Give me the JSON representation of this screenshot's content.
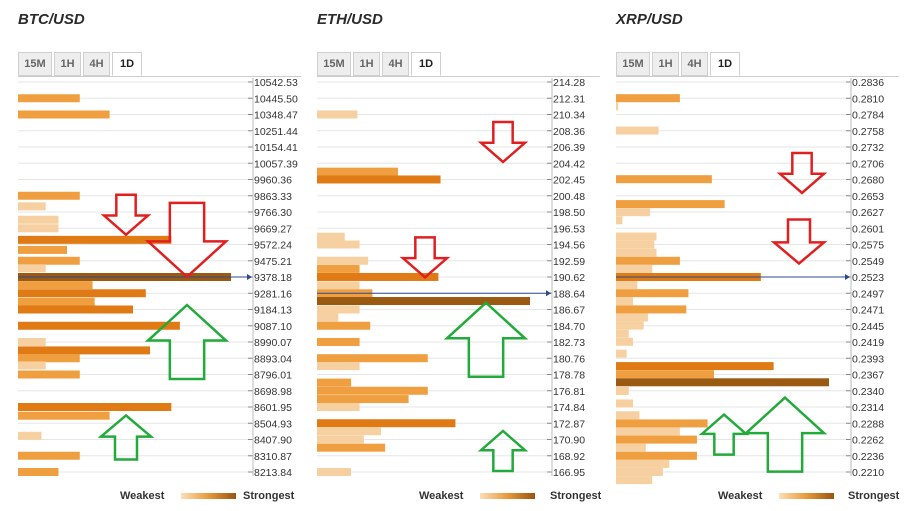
{
  "timeframes": [
    "15M",
    "1H",
    "4H",
    "1D"
  ],
  "active_timeframe": "1D",
  "legend": {
    "weakest": "Weakest",
    "strongest": "Strongest"
  },
  "colors": {
    "weak": "#f6d0a0",
    "medium": "#ef9f3f",
    "strong": "#e07a14",
    "strongest": "#9a5a12",
    "current_price_line": "#2b4a8f",
    "arrow_down": "#e02020",
    "arrow_up": "#22aa3a"
  },
  "panels": [
    {
      "title": "BTC/USD",
      "chart_data": {
        "type": "bar",
        "orientation": "horizontal",
        "current_price": 9378.18,
        "price_levels": [
          "10542.53",
          "10445.50",
          "10348.47",
          "10251.44",
          "10154.41",
          "10057.39",
          "9960.36",
          "9863.33",
          "9766.30",
          "9669.27",
          "9572.24",
          "9475.21",
          "9378.18",
          "9281.16",
          "9184.13",
          "9087.10",
          "8990.07",
          "8893.04",
          "8796.01",
          "8698.98",
          "8601.95",
          "8504.93",
          "8407.90",
          "8310.87",
          "8213.84"
        ],
        "bars": [
          {
            "level": 10445.5,
            "strength": 0.29,
            "tone": "medium"
          },
          {
            "level": 10348.47,
            "strength": 0.43,
            "tone": "medium"
          },
          {
            "level": 9863.33,
            "strength": 0.29,
            "tone": "medium"
          },
          {
            "level": 9800.0,
            "strength": 0.13,
            "tone": "weak"
          },
          {
            "level": 9720.0,
            "strength": 0.19,
            "tone": "weak"
          },
          {
            "level": 9669.27,
            "strength": 0.19,
            "tone": "weak"
          },
          {
            "level": 9600.0,
            "strength": 0.72,
            "tone": "strong"
          },
          {
            "level": 9540.0,
            "strength": 0.23,
            "tone": "medium"
          },
          {
            "level": 9475.21,
            "strength": 0.29,
            "tone": "medium"
          },
          {
            "level": 9430.0,
            "strength": 0.13,
            "tone": "weak"
          },
          {
            "level": 9378.18,
            "strength": 1.0,
            "tone": "strongest"
          },
          {
            "level": 9330.0,
            "strength": 0.35,
            "tone": "medium"
          },
          {
            "level": 9281.16,
            "strength": 0.6,
            "tone": "strong"
          },
          {
            "level": 9230.0,
            "strength": 0.36,
            "tone": "medium"
          },
          {
            "level": 9184.13,
            "strength": 0.54,
            "tone": "strong"
          },
          {
            "level": 9087.1,
            "strength": 0.76,
            "tone": "strong"
          },
          {
            "level": 8990.07,
            "strength": 0.13,
            "tone": "weak"
          },
          {
            "level": 8940.0,
            "strength": 0.62,
            "tone": "strong"
          },
          {
            "level": 8893.04,
            "strength": 0.29,
            "tone": "medium"
          },
          {
            "level": 8850.0,
            "strength": 0.13,
            "tone": "weak"
          },
          {
            "level": 8796.01,
            "strength": 0.29,
            "tone": "medium"
          },
          {
            "level": 8601.95,
            "strength": 0.72,
            "tone": "strong"
          },
          {
            "level": 8550.0,
            "strength": 0.43,
            "tone": "medium"
          },
          {
            "level": 8430.0,
            "strength": 0.11,
            "tone": "weak"
          },
          {
            "level": 8310.87,
            "strength": 0.29,
            "tone": "medium"
          },
          {
            "level": 8213.84,
            "strength": 0.19,
            "tone": "medium"
          }
        ],
        "arrows": [
          {
            "dir": "down",
            "at": 9750,
            "size": "small",
            "pos": "mid"
          },
          {
            "dir": "down",
            "at": 9600,
            "size": "large",
            "pos": "right"
          },
          {
            "dir": "up",
            "at": 8990,
            "size": "large",
            "pos": "right"
          },
          {
            "dir": "up",
            "at": 8420,
            "size": "medium",
            "pos": "mid"
          }
        ]
      }
    },
    {
      "title": "ETH/USD",
      "chart_data": {
        "type": "bar",
        "orientation": "horizontal",
        "current_price": 188.64,
        "price_levels": [
          "214.28",
          "212.31",
          "210.34",
          "208.36",
          "206.39",
          "204.42",
          "202.45",
          "200.48",
          "198.50",
          "196.53",
          "194.56",
          "192.59",
          "190.62",
          "188.64",
          "186.67",
          "184.70",
          "182.73",
          "180.76",
          "178.78",
          "176.81",
          "174.84",
          "172.87",
          "170.90",
          "168.92",
          "166.95"
        ],
        "bars": [
          {
            "level": 210.34,
            "strength": 0.19,
            "tone": "weak"
          },
          {
            "level": 203.4,
            "strength": 0.38,
            "tone": "medium"
          },
          {
            "level": 202.45,
            "strength": 0.58,
            "tone": "strong"
          },
          {
            "level": 195.5,
            "strength": 0.13,
            "tone": "weak"
          },
          {
            "level": 194.56,
            "strength": 0.2,
            "tone": "weak"
          },
          {
            "level": 192.59,
            "strength": 0.24,
            "tone": "weak"
          },
          {
            "level": 191.6,
            "strength": 0.2,
            "tone": "medium"
          },
          {
            "level": 190.62,
            "strength": 0.57,
            "tone": "strong"
          },
          {
            "level": 189.6,
            "strength": 0.2,
            "tone": "weak"
          },
          {
            "level": 188.64,
            "strength": 0.26,
            "tone": "medium"
          },
          {
            "level": 187.7,
            "strength": 1.0,
            "tone": "strongest"
          },
          {
            "level": 186.67,
            "strength": 0.2,
            "tone": "weak"
          },
          {
            "level": 185.7,
            "strength": 0.1,
            "tone": "weak"
          },
          {
            "level": 184.7,
            "strength": 0.25,
            "tone": "medium"
          },
          {
            "level": 182.73,
            "strength": 0.2,
            "tone": "medium"
          },
          {
            "level": 180.76,
            "strength": 0.52,
            "tone": "medium"
          },
          {
            "level": 179.8,
            "strength": 0.2,
            "tone": "weak"
          },
          {
            "level": 177.8,
            "strength": 0.16,
            "tone": "medium"
          },
          {
            "level": 176.81,
            "strength": 0.52,
            "tone": "medium"
          },
          {
            "level": 175.8,
            "strength": 0.43,
            "tone": "medium"
          },
          {
            "level": 174.84,
            "strength": 0.2,
            "tone": "weak"
          },
          {
            "level": 172.87,
            "strength": 0.65,
            "tone": "strong"
          },
          {
            "level": 171.9,
            "strength": 0.3,
            "tone": "weak"
          },
          {
            "level": 170.9,
            "strength": 0.22,
            "tone": "weak"
          },
          {
            "level": 169.9,
            "strength": 0.32,
            "tone": "medium"
          },
          {
            "level": 166.95,
            "strength": 0.16,
            "tone": "weak"
          }
        ],
        "arrows": [
          {
            "dir": "down",
            "at": 207.0,
            "size": "small",
            "pos": "right"
          },
          {
            "dir": "down",
            "at": 193.0,
            "size": "small",
            "pos": "mid"
          },
          {
            "dir": "up",
            "at": 183.0,
            "size": "large",
            "pos": "right"
          },
          {
            "dir": "up",
            "at": 169.5,
            "size": "small",
            "pos": "right"
          }
        ]
      }
    },
    {
      "title": "XRP/USD",
      "chart_data": {
        "type": "bar",
        "orientation": "horizontal",
        "current_price": 0.2523,
        "price_levels": [
          "0.2836",
          "0.2810",
          "0.2784",
          "0.2758",
          "0.2732",
          "0.2706",
          "0.2680",
          "0.2653",
          "0.2627",
          "0.2601",
          "0.2575",
          "0.2549",
          "0.2523",
          "0.2497",
          "0.2471",
          "0.2445",
          "0.2419",
          "0.2393",
          "0.2367",
          "0.2340",
          "0.2314",
          "0.2288",
          "0.2262",
          "0.2236",
          "0.2210"
        ],
        "bars": [
          {
            "level": 0.281,
            "strength": 0.3,
            "tone": "medium"
          },
          {
            "level": 0.2797,
            "strength": 0.01,
            "tone": "weak"
          },
          {
            "level": 0.2758,
            "strength": 0.2,
            "tone": "weak"
          },
          {
            "level": 0.268,
            "strength": 0.45,
            "tone": "medium"
          },
          {
            "level": 0.264,
            "strength": 0.51,
            "tone": "medium"
          },
          {
            "level": 0.2627,
            "strength": 0.16,
            "tone": "weak"
          },
          {
            "level": 0.2614,
            "strength": 0.03,
            "tone": "weak"
          },
          {
            "level": 0.2588,
            "strength": 0.19,
            "tone": "weak"
          },
          {
            "level": 0.2575,
            "strength": 0.18,
            "tone": "weak"
          },
          {
            "level": 0.2562,
            "strength": 0.19,
            "tone": "weak"
          },
          {
            "level": 0.2549,
            "strength": 0.3,
            "tone": "medium"
          },
          {
            "level": 0.2536,
            "strength": 0.17,
            "tone": "weak"
          },
          {
            "level": 0.2523,
            "strength": 0.68,
            "tone": "strong"
          },
          {
            "level": 0.251,
            "strength": 0.1,
            "tone": "weak"
          },
          {
            "level": 0.2497,
            "strength": 0.34,
            "tone": "medium"
          },
          {
            "level": 0.2484,
            "strength": 0.08,
            "tone": "weak"
          },
          {
            "level": 0.2471,
            "strength": 0.33,
            "tone": "medium"
          },
          {
            "level": 0.2458,
            "strength": 0.15,
            "tone": "weak"
          },
          {
            "level": 0.2445,
            "strength": 0.13,
            "tone": "weak"
          },
          {
            "level": 0.2432,
            "strength": 0.06,
            "tone": "weak"
          },
          {
            "level": 0.2419,
            "strength": 0.08,
            "tone": "weak"
          },
          {
            "level": 0.24,
            "strength": 0.05,
            "tone": "weak"
          },
          {
            "level": 0.238,
            "strength": 0.74,
            "tone": "strong"
          },
          {
            "level": 0.2367,
            "strength": 0.46,
            "tone": "medium"
          },
          {
            "level": 0.2354,
            "strength": 1.0,
            "tone": "strongest"
          },
          {
            "level": 0.234,
            "strength": 0.06,
            "tone": "weak"
          },
          {
            "level": 0.232,
            "strength": 0.08,
            "tone": "weak"
          },
          {
            "level": 0.2301,
            "strength": 0.11,
            "tone": "weak"
          },
          {
            "level": 0.2288,
            "strength": 0.43,
            "tone": "medium"
          },
          {
            "level": 0.2275,
            "strength": 0.3,
            "tone": "weak"
          },
          {
            "level": 0.2262,
            "strength": 0.38,
            "tone": "medium"
          },
          {
            "level": 0.2249,
            "strength": 0.14,
            "tone": "weak"
          },
          {
            "level": 0.2236,
            "strength": 0.38,
            "tone": "medium"
          },
          {
            "level": 0.2223,
            "strength": 0.25,
            "tone": "weak"
          },
          {
            "level": 0.221,
            "strength": 0.22,
            "tone": "weak"
          },
          {
            "level": 0.2197,
            "strength": 0.17,
            "tone": "weak"
          }
        ],
        "arrows": [
          {
            "dir": "down",
            "at": 0.269,
            "size": "small",
            "pos": "right"
          },
          {
            "dir": "down",
            "at": 0.258,
            "size": "medium",
            "pos": "right"
          },
          {
            "dir": "up",
            "at": 0.227,
            "size": "small",
            "pos": "mid"
          },
          {
            "dir": "up",
            "at": 0.227,
            "size": "large",
            "pos": "right"
          }
        ]
      }
    }
  ]
}
